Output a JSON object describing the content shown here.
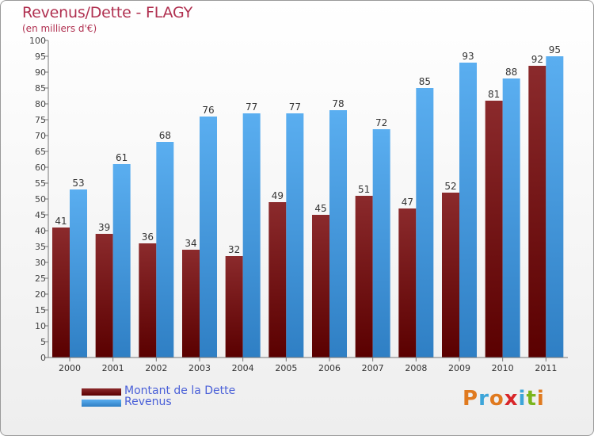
{
  "header": {
    "title": "Revenus/Dette - FLAGY",
    "subtitle": "(en milliers d'€)"
  },
  "legend": {
    "items": [
      {
        "label": "Montant de la Dette",
        "color": "#7a1618"
      },
      {
        "label": "Revenus",
        "color": "#4aa3e6"
      }
    ]
  },
  "logo": {
    "letters": [
      "P",
      "r",
      "o",
      "x",
      "i",
      "t",
      "i"
    ],
    "colors": [
      "#e07a1f",
      "#3da5d9",
      "#e07a1f",
      "#d8262a",
      "#3da5d9",
      "#7ab51d",
      "#e07a1f"
    ]
  },
  "chart_data": {
    "type": "bar",
    "title": "Revenus/Dette - FLAGY",
    "ylabel": "(en milliers d'€)",
    "xlabel": "",
    "ylim": [
      0,
      100
    ],
    "ytick_step": 5,
    "grid": false,
    "legend_position": "bottom-left",
    "categories": [
      "2000",
      "2001",
      "2002",
      "2003",
      "2004",
      "2005",
      "2006",
      "2007",
      "2008",
      "2009",
      "2010",
      "2011"
    ],
    "series": [
      {
        "name": "Montant de la Dette",
        "color": "#7a1618",
        "values": [
          41,
          39,
          36,
          34,
          32,
          49,
          45,
          51,
          47,
          52,
          81,
          92
        ]
      },
      {
        "name": "Revenus",
        "color": "#4aa3e6",
        "values": [
          53,
          61,
          68,
          76,
          77,
          77,
          78,
          72,
          85,
          93,
          88,
          95
        ]
      }
    ]
  }
}
